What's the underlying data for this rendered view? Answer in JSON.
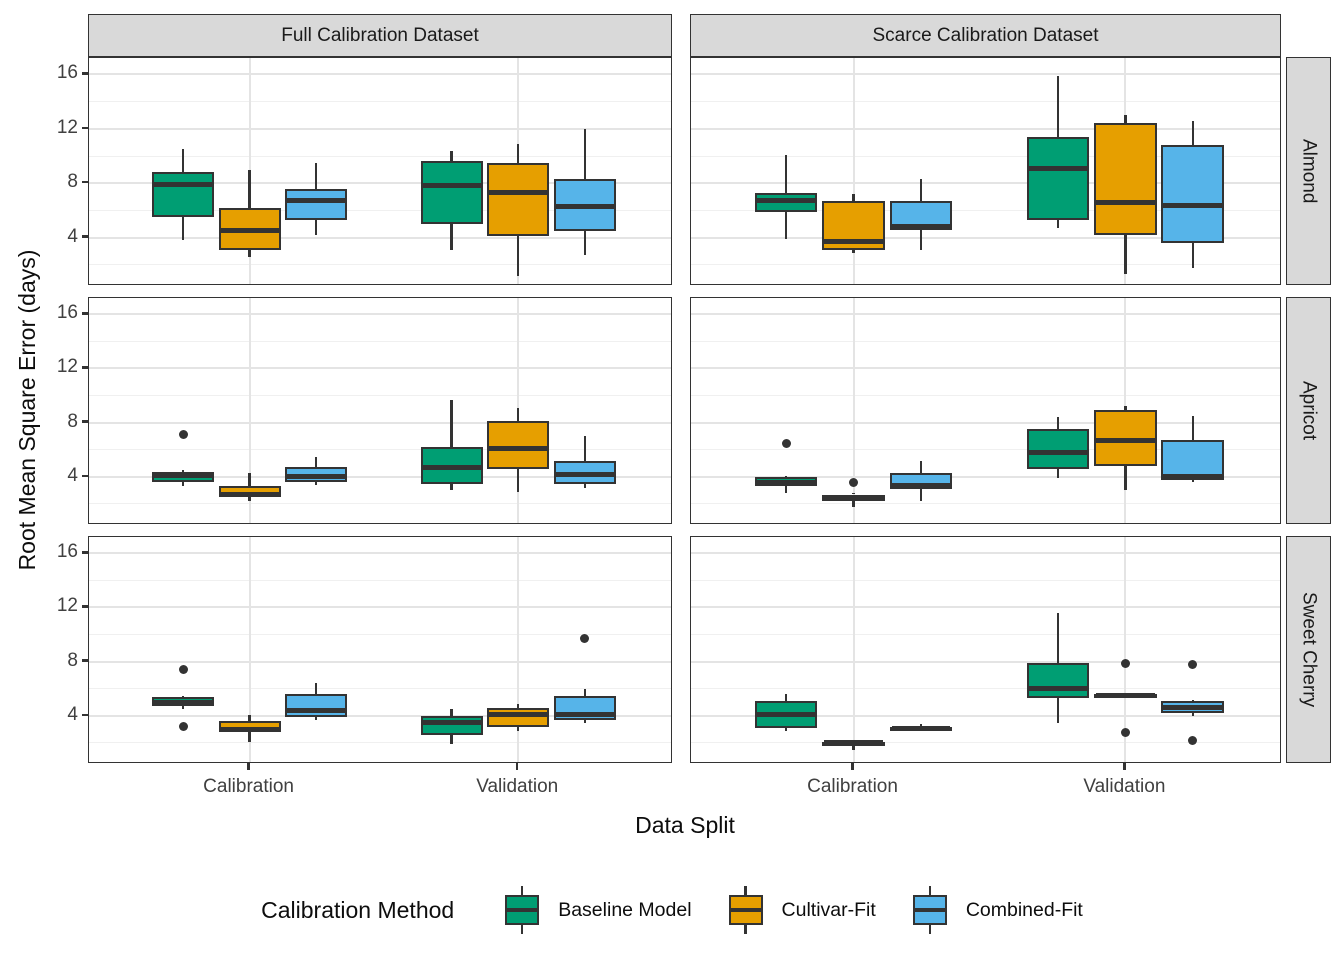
{
  "figure": {
    "y_axis_title": "Root Mean Square Error (days)",
    "x_axis_title": "Data Split",
    "col_strips": [
      "Full Calibration Dataset",
      "Scarce Calibration Dataset"
    ],
    "row_strips": [
      "Almond",
      "Apricot",
      "Sweet Cherry"
    ],
    "y_tick_labels": [
      16,
      12,
      8,
      4
    ],
    "x_tick_labels": [
      "Calibration",
      "Validation"
    ]
  },
  "legend": {
    "title": "Calibration Method",
    "items": [
      {
        "label": "Baseline Model",
        "color": "#009E73"
      },
      {
        "label": "Cultivar-Fit",
        "color": "#E69F00"
      },
      {
        "label": "Combined-Fit",
        "color": "#56B4E9"
      }
    ]
  },
  "colors": {
    "baseline": "#009E73",
    "cultivar_fit": "#E69F00",
    "combined_fit": "#56B4E9",
    "box_stroke": "#333333",
    "strip_bg": "#d9d9d9",
    "grid_major": "#e4e4e4",
    "grid_minor": "#f0f0f0",
    "tick_text": "#404040"
  },
  "chart_data": {
    "type": "boxplot",
    "title": "",
    "xlabel": "Data Split",
    "ylabel": "Root Mean Square Error (days)",
    "y_ticks": [
      4,
      8,
      12,
      16
    ],
    "y_minor_gridlines": [
      2,
      6,
      10,
      14
    ],
    "y_display_range": [
      0.45,
      17.2
    ],
    "facet_cols": [
      "Full Calibration Dataset",
      "Scarce Calibration Dataset"
    ],
    "facet_rows": [
      "Almond",
      "Apricot",
      "Sweet Cherry"
    ],
    "splits": [
      "Calibration",
      "Validation"
    ],
    "methods": [
      "Baseline Model",
      "Cultivar-Fit",
      "Combined-Fit"
    ],
    "facets": [
      {
        "row": "Almond",
        "col": "Full Calibration Dataset",
        "boxes": [
          {
            "split": "Calibration",
            "method": "Baseline Model",
            "min": 3.8,
            "q1": 5.5,
            "median": 7.9,
            "q3": 8.8,
            "max": 10.5,
            "outliers": []
          },
          {
            "split": "Calibration",
            "method": "Cultivar-Fit",
            "min": 2.6,
            "q1": 3.1,
            "median": 4.5,
            "q3": 6.2,
            "max": 9.0,
            "outliers": []
          },
          {
            "split": "Calibration",
            "method": "Combined-Fit",
            "min": 4.2,
            "q1": 5.3,
            "median": 6.7,
            "q3": 7.6,
            "max": 9.5,
            "outliers": []
          },
          {
            "split": "Validation",
            "method": "Baseline Model",
            "min": 3.1,
            "q1": 5.0,
            "median": 7.8,
            "q3": 9.6,
            "max": 10.4,
            "outliers": []
          },
          {
            "split": "Validation",
            "method": "Cultivar-Fit",
            "min": 1.2,
            "q1": 4.1,
            "median": 7.3,
            "q3": 9.5,
            "max": 10.9,
            "outliers": []
          },
          {
            "split": "Validation",
            "method": "Combined-Fit",
            "min": 2.7,
            "q1": 4.5,
            "median": 6.3,
            "q3": 8.3,
            "max": 12.0,
            "outliers": []
          }
        ]
      },
      {
        "row": "Almond",
        "col": "Scarce Calibration Dataset",
        "boxes": [
          {
            "split": "Calibration",
            "method": "Baseline Model",
            "min": 3.9,
            "q1": 5.9,
            "median": 6.7,
            "q3": 7.3,
            "max": 10.1,
            "outliers": []
          },
          {
            "split": "Calibration",
            "method": "Cultivar-Fit",
            "min": 2.9,
            "q1": 3.1,
            "median": 3.7,
            "q3": 6.7,
            "max": 7.2,
            "outliers": []
          },
          {
            "split": "Calibration",
            "method": "Combined-Fit",
            "min": 3.1,
            "q1": 4.6,
            "median": 4.8,
            "q3": 6.7,
            "max": 8.3,
            "outliers": []
          },
          {
            "split": "Validation",
            "method": "Baseline Model",
            "min": 4.7,
            "q1": 5.3,
            "median": 9.1,
            "q3": 11.4,
            "max": 15.9,
            "outliers": []
          },
          {
            "split": "Validation",
            "method": "Cultivar-Fit",
            "min": 1.3,
            "q1": 4.2,
            "median": 6.6,
            "q3": 12.4,
            "max": 13.0,
            "outliers": []
          },
          {
            "split": "Validation",
            "method": "Combined-Fit",
            "min": 1.8,
            "q1": 3.6,
            "median": 6.4,
            "q3": 10.8,
            "max": 12.6,
            "outliers": []
          }
        ]
      },
      {
        "row": "Apricot",
        "col": "Full Calibration Dataset",
        "boxes": [
          {
            "split": "Calibration",
            "method": "Baseline Model",
            "min": 3.3,
            "q1": 3.6,
            "median": 4.1,
            "q3": 4.35,
            "max": 4.5,
            "outliers": [
              7.1
            ]
          },
          {
            "split": "Calibration",
            "method": "Cultivar-Fit",
            "min": 2.2,
            "q1": 2.5,
            "median": 2.7,
            "q3": 3.3,
            "max": 4.3,
            "outliers": []
          },
          {
            "split": "Calibration",
            "method": "Combined-Fit",
            "min": 3.4,
            "q1": 3.6,
            "median": 4.05,
            "q3": 4.7,
            "max": 5.5,
            "outliers": []
          },
          {
            "split": "Validation",
            "method": "Baseline Model",
            "min": 3.0,
            "q1": 3.5,
            "median": 4.7,
            "q3": 6.2,
            "max": 9.7,
            "outliers": []
          },
          {
            "split": "Validation",
            "method": "Cultivar-Fit",
            "min": 2.9,
            "q1": 4.6,
            "median": 6.1,
            "q3": 8.1,
            "max": 9.1,
            "outliers": []
          },
          {
            "split": "Validation",
            "method": "Combined-Fit",
            "min": 3.2,
            "q1": 3.5,
            "median": 4.2,
            "q3": 5.2,
            "max": 7.0,
            "outliers": []
          }
        ]
      },
      {
        "row": "Apricot",
        "col": "Scarce Calibration Dataset",
        "boxes": [
          {
            "split": "Calibration",
            "method": "Baseline Model",
            "min": 2.8,
            "q1": 3.3,
            "median": 3.6,
            "q3": 4.0,
            "max": 4.1,
            "outliers": [
              6.5
            ]
          },
          {
            "split": "Calibration",
            "method": "Cultivar-Fit",
            "min": 1.8,
            "q1": 2.2,
            "median": 2.4,
            "q3": 2.7,
            "max": 2.8,
            "outliers": [
              3.6
            ]
          },
          {
            "split": "Calibration",
            "method": "Combined-Fit",
            "min": 2.2,
            "q1": 3.1,
            "median": 3.4,
            "q3": 4.3,
            "max": 5.2,
            "outliers": []
          },
          {
            "split": "Validation",
            "method": "Baseline Model",
            "min": 3.9,
            "q1": 4.6,
            "median": 5.8,
            "q3": 7.5,
            "max": 8.4,
            "outliers": []
          },
          {
            "split": "Validation",
            "method": "Cultivar-Fit",
            "min": 3.0,
            "q1": 4.8,
            "median": 6.7,
            "q3": 8.9,
            "max": 9.2,
            "outliers": []
          },
          {
            "split": "Validation",
            "method": "Combined-Fit",
            "min": 3.6,
            "q1": 3.8,
            "median": 4.0,
            "q3": 6.7,
            "max": 8.5,
            "outliers": []
          }
        ]
      },
      {
        "row": "Sweet Cherry",
        "col": "Full Calibration Dataset",
        "boxes": [
          {
            "split": "Calibration",
            "method": "Baseline Model",
            "min": 4.5,
            "q1": 4.7,
            "median": 5.0,
            "q3": 5.4,
            "max": 5.5,
            "outliers": [
              7.4,
              3.2
            ]
          },
          {
            "split": "Calibration",
            "method": "Cultivar-Fit",
            "min": 2.1,
            "q1": 2.8,
            "median": 3.0,
            "q3": 3.6,
            "max": 4.1,
            "outliers": []
          },
          {
            "split": "Calibration",
            "method": "Combined-Fit",
            "min": 3.7,
            "q1": 3.9,
            "median": 4.4,
            "q3": 5.6,
            "max": 6.4,
            "outliers": []
          },
          {
            "split": "Validation",
            "method": "Baseline Model",
            "min": 1.9,
            "q1": 2.6,
            "median": 3.5,
            "q3": 4.0,
            "max": 4.5,
            "outliers": []
          },
          {
            "split": "Validation",
            "method": "Cultivar-Fit",
            "min": 2.9,
            "q1": 3.2,
            "median": 4.1,
            "q3": 4.6,
            "max": 4.9,
            "outliers": []
          },
          {
            "split": "Validation",
            "method": "Combined-Fit",
            "min": 3.5,
            "q1": 3.7,
            "median": 4.1,
            "q3": 5.5,
            "max": 6.0,
            "outliers": [
              9.7
            ]
          }
        ]
      },
      {
        "row": "Sweet Cherry",
        "col": "Scarce Calibration Dataset",
        "boxes": [
          {
            "split": "Calibration",
            "method": "Baseline Model",
            "min": 2.9,
            "q1": 3.1,
            "median": 4.1,
            "q3": 5.1,
            "max": 5.6,
            "outliers": []
          },
          {
            "split": "Calibration",
            "method": "Cultivar-Fit",
            "min": 1.5,
            "q1": 1.9,
            "median": 2.0,
            "q3": 2.1,
            "max": 2.2,
            "outliers": []
          },
          {
            "split": "Calibration",
            "method": "Combined-Fit",
            "min": 2.9,
            "q1": 3.0,
            "median": 3.1,
            "q3": 3.2,
            "max": 3.4,
            "outliers": []
          },
          {
            "split": "Validation",
            "method": "Baseline Model",
            "min": 3.5,
            "q1": 5.3,
            "median": 6.0,
            "q3": 7.9,
            "max": 11.6,
            "outliers": []
          },
          {
            "split": "Validation",
            "method": "Cultivar-Fit",
            "min": 5.3,
            "q1": 5.4,
            "median": 5.5,
            "q3": 5.6,
            "max": 5.7,
            "outliers": [
              7.9,
              2.8
            ]
          },
          {
            "split": "Validation",
            "method": "Combined-Fit",
            "min": 4.0,
            "q1": 4.2,
            "median": 4.6,
            "q3": 5.1,
            "max": 5.2,
            "outliers": [
              7.8,
              2.2
            ]
          }
        ]
      }
    ]
  }
}
